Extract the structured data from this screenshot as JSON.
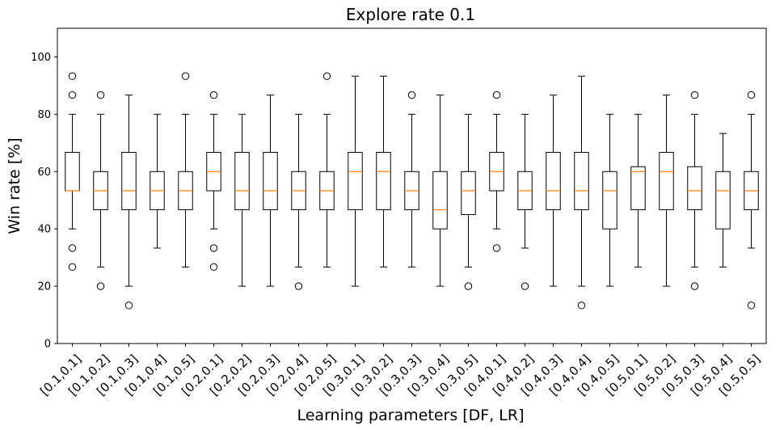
{
  "chart_data": {
    "type": "box",
    "title": "Explore rate 0.1",
    "xlabel": "Learning parameters [DF, LR]",
    "ylabel": "Win rate [%]",
    "ylim": [
      0,
      110
    ],
    "yticks": [
      0,
      20,
      40,
      60,
      80,
      100
    ],
    "grid": false,
    "categories": [
      "[0.1,0.1]",
      "[0.1,0.2]",
      "[0.1,0.3]",
      "[0.1,0.4]",
      "[0.1,0.5]",
      "[0.2,0.1]",
      "[0.2,0.2]",
      "[0.2,0.3]",
      "[0.2,0.4]",
      "[0.2,0.5]",
      "[0.3,0.1]",
      "[0.3,0.2]",
      "[0.3,0.3]",
      "[0.3,0.4]",
      "[0.3,0.5]",
      "[0.4,0.1]",
      "[0.4,0.2]",
      "[0.4,0.3]",
      "[0.4,0.4]",
      "[0.4,0.5]",
      "[0.5,0.1]",
      "[0.5,0.2]",
      "[0.5,0.3]",
      "[0.5,0.4]",
      "[0.5,0.5]"
    ],
    "boxes": [
      {
        "whislo": 40,
        "q1": 53.3,
        "median": 53.3,
        "q3": 66.7,
        "whishi": 80,
        "fliers": [
          93.3,
          86.7,
          33.3,
          26.7
        ]
      },
      {
        "whislo": 26.7,
        "q1": 46.7,
        "median": 53.3,
        "q3": 60,
        "whishi": 80,
        "fliers": [
          86.7,
          20
        ]
      },
      {
        "whislo": 20,
        "q1": 46.7,
        "median": 53.3,
        "q3": 66.7,
        "whishi": 86.7,
        "fliers": [
          13.3
        ]
      },
      {
        "whislo": 33.3,
        "q1": 46.7,
        "median": 53.3,
        "q3": 60,
        "whishi": 80,
        "fliers": []
      },
      {
        "whislo": 26.7,
        "q1": 46.7,
        "median": 53.3,
        "q3": 60,
        "whishi": 80,
        "fliers": [
          93.3
        ]
      },
      {
        "whislo": 40,
        "q1": 53.3,
        "median": 60,
        "q3": 66.7,
        "whishi": 80,
        "fliers": [
          86.7,
          33.3,
          26.7
        ]
      },
      {
        "whislo": 20,
        "q1": 46.7,
        "median": 53.3,
        "q3": 66.7,
        "whishi": 80,
        "fliers": []
      },
      {
        "whislo": 20,
        "q1": 46.7,
        "median": 53.3,
        "q3": 66.7,
        "whishi": 86.7,
        "fliers": []
      },
      {
        "whislo": 26.7,
        "q1": 46.7,
        "median": 53.3,
        "q3": 60,
        "whishi": 80,
        "fliers": [
          20
        ]
      },
      {
        "whislo": 26.7,
        "q1": 46.7,
        "median": 53.3,
        "q3": 60,
        "whishi": 80,
        "fliers": [
          93.3
        ]
      },
      {
        "whislo": 20,
        "q1": 46.7,
        "median": 60,
        "q3": 66.7,
        "whishi": 93.3,
        "fliers": []
      },
      {
        "whislo": 26.7,
        "q1": 46.7,
        "median": 60,
        "q3": 66.7,
        "whishi": 93.3,
        "fliers": []
      },
      {
        "whislo": 26.7,
        "q1": 46.7,
        "median": 53.3,
        "q3": 60,
        "whishi": 80,
        "fliers": [
          86.7
        ]
      },
      {
        "whislo": 20,
        "q1": 40,
        "median": 46.7,
        "q3": 60,
        "whishi": 86.7,
        "fliers": []
      },
      {
        "whislo": 26.7,
        "q1": 45,
        "median": 53.3,
        "q3": 60,
        "whishi": 80,
        "fliers": [
          20
        ]
      },
      {
        "whislo": 40,
        "q1": 53.3,
        "median": 60,
        "q3": 66.7,
        "whishi": 80,
        "fliers": [
          86.7,
          33.3
        ]
      },
      {
        "whislo": 33.3,
        "q1": 46.7,
        "median": 53.3,
        "q3": 60,
        "whishi": 80,
        "fliers": [
          20
        ]
      },
      {
        "whislo": 20,
        "q1": 46.7,
        "median": 53.3,
        "q3": 66.7,
        "whishi": 86.7,
        "fliers": []
      },
      {
        "whislo": 20,
        "q1": 46.7,
        "median": 53.3,
        "q3": 66.7,
        "whishi": 93.3,
        "fliers": [
          13.3
        ]
      },
      {
        "whislo": 20,
        "q1": 40,
        "median": 53.3,
        "q3": 60,
        "whishi": 80,
        "fliers": []
      },
      {
        "whislo": 26.7,
        "q1": 46.7,
        "median": 60,
        "q3": 61.7,
        "whishi": 80,
        "fliers": []
      },
      {
        "whislo": 20,
        "q1": 46.7,
        "median": 60,
        "q3": 66.7,
        "whishi": 86.7,
        "fliers": []
      },
      {
        "whislo": 26.7,
        "q1": 46.7,
        "median": 53.3,
        "q3": 61.7,
        "whishi": 80,
        "fliers": [
          86.7,
          20
        ]
      },
      {
        "whislo": 26.7,
        "q1": 40,
        "median": 53.3,
        "q3": 60,
        "whishi": 73.3,
        "fliers": []
      },
      {
        "whislo": 33.3,
        "q1": 46.7,
        "median": 53.3,
        "q3": 60,
        "whishi": 80,
        "fliers": [
          86.7,
          13.3
        ]
      }
    ],
    "colors": {
      "box": "#000000",
      "median": "#ff7f0e",
      "flier": "#000000"
    }
  }
}
